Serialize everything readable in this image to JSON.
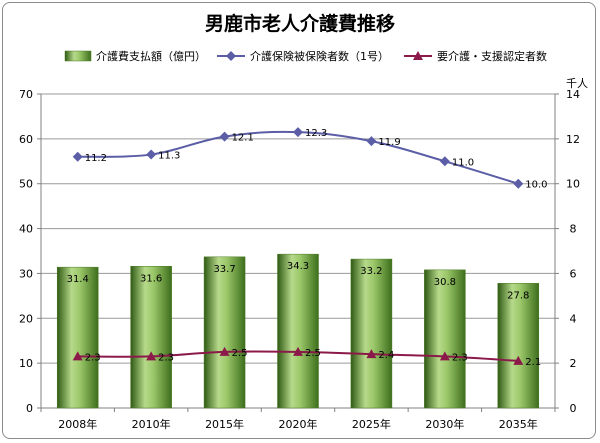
{
  "chart_data": {
    "type": "bar",
    "title": "男鹿市老人介護費推移",
    "categories": [
      "2008年",
      "2010年",
      "2015年",
      "2020年",
      "2025年",
      "2030年",
      "2035年"
    ],
    "series": [
      {
        "name": "介護費支払額（億円）",
        "type": "bar",
        "axis": "left",
        "values": [
          31.4,
          31.6,
          33.7,
          34.3,
          33.2,
          30.8,
          27.8
        ],
        "labels": [
          "31.4",
          "31.6",
          "33.7",
          "34.3",
          "33.2",
          "30.8",
          "27.8"
        ],
        "color": "#6b9a3a"
      },
      {
        "name": "介護保険被保険者数（1号）",
        "type": "line",
        "axis": "right",
        "values": [
          11.2,
          11.3,
          12.1,
          12.3,
          11.9,
          11.0,
          10.0
        ],
        "labels": [
          "11.2",
          "11.3",
          "12.1",
          "12.3",
          "11.9",
          "11.0",
          "10.0"
        ],
        "color": "#5b5ea6",
        "marker": "diamond"
      },
      {
        "name": "要介護・支援認定者数",
        "type": "line",
        "axis": "right",
        "values": [
          2.3,
          2.3,
          2.5,
          2.5,
          2.4,
          2.3,
          2.1
        ],
        "labels": [
          "2.3",
          "2.3",
          "2.5",
          "2.5",
          "2.4",
          "2.3",
          "2.1"
        ],
        "color": "#8b1a4a",
        "marker": "triangle"
      }
    ],
    "left_axis": {
      "ylim": [
        0,
        70
      ],
      "ticks": [
        "0",
        "10",
        "20",
        "30",
        "40",
        "50",
        "60",
        "70"
      ]
    },
    "right_axis": {
      "ylim": [
        0,
        14
      ],
      "ticks": [
        "0",
        "2",
        "4",
        "6",
        "8",
        "10",
        "12",
        "14"
      ],
      "unit": "千人"
    },
    "grid": true,
    "legend_position": "top"
  }
}
